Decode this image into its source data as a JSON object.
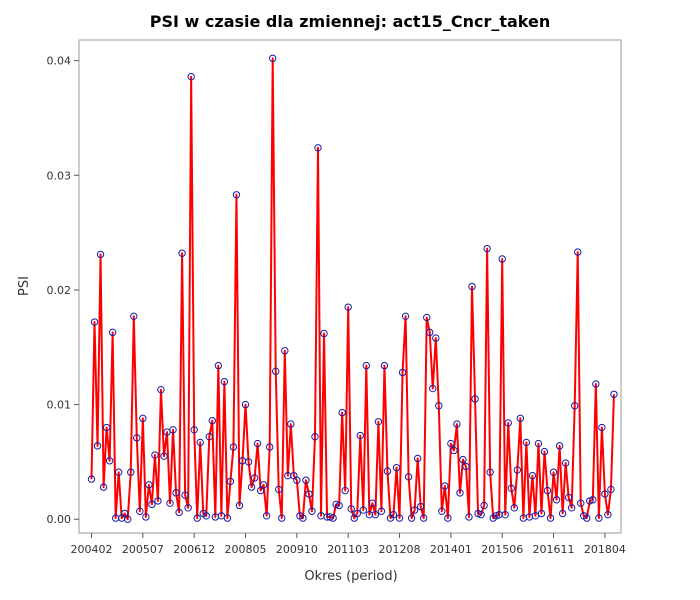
{
  "chart_data": {
    "type": "line",
    "title": "PSI w czasie dla zmiennej: act15_Cncr_taken",
    "xlabel": "Okres (period)",
    "ylabel": "PSI",
    "ylim": [
      -0.0012,
      0.0418
    ],
    "yticks": [
      "0.00",
      "0.01",
      "0.02",
      "0.03",
      "0.04"
    ],
    "ytick_values": [
      0,
      0.01,
      0.02,
      0.03,
      0.04
    ],
    "xticks": [
      "200402",
      "200507",
      "200612",
      "200805",
      "200910",
      "201103",
      "201208",
      "201401",
      "201506",
      "201611",
      "201804"
    ],
    "grid": false,
    "line_color": "#ff0000",
    "marker_color": "#1a1aa6",
    "start_period": "200402",
    "series": [
      {
        "values": [
          0.0035,
          0.0172,
          0.0064,
          0.0231,
          0.0028,
          0.008,
          0.0051,
          0.0163,
          0.0001,
          0.0041,
          0.0001,
          0.0005,
          0.0,
          0.0041,
          0.0177,
          0.0071,
          0.0007,
          0.0088,
          0.0002,
          0.003,
          0.0013,
          0.0056,
          0.0016,
          0.0113,
          0.0055,
          0.0076,
          0.0014,
          0.0078,
          0.0023,
          0.0006,
          0.0232,
          0.0021,
          0.001,
          0.0386,
          0.0078,
          0.0001,
          0.0067,
          0.0005,
          0.0003,
          0.0072,
          0.0086,
          0.0002,
          0.0134,
          0.0003,
          0.012,
          0.0001,
          0.0033,
          0.0063,
          0.0283,
          0.0012,
          0.0051,
          0.01,
          0.005,
          0.0028,
          0.0036,
          0.0066,
          0.0025,
          0.003,
          0.0003,
          0.0063,
          0.0402,
          0.0129,
          0.0026,
          0.0001,
          0.0147,
          0.0038,
          0.0083,
          0.0038,
          0.0034,
          0.0003,
          0.0001,
          0.0034,
          0.0022,
          0.0007,
          0.0072,
          0.0324,
          0.0003,
          0.0162,
          0.0002,
          0.0002,
          0.0001,
          0.0013,
          0.0012,
          0.0093,
          0.0025,
          0.0185,
          0.0009,
          0.0001,
          0.0005,
          0.0073,
          0.0008,
          0.0134,
          0.0004,
          0.0014,
          0.0004,
          0.0085,
          0.0007,
          0.0134,
          0.0042,
          0.0001,
          0.0004,
          0.0045,
          0.0001,
          0.0128,
          0.0177,
          0.0037,
          0.0001,
          0.0008,
          0.0053,
          0.0011,
          0.0001,
          0.0176,
          0.0163,
          0.0114,
          0.0158,
          0.0099,
          0.0007,
          0.0029,
          0.0001,
          0.0066,
          0.006,
          0.0083,
          0.0023,
          0.0052,
          0.0046,
          0.0002,
          0.0203,
          0.0105,
          0.0005,
          0.0004,
          0.0012,
          0.0236,
          0.0041,
          0.0001,
          0.0003,
          0.0004,
          0.0227,
          0.0004,
          0.0084,
          0.0027,
          0.001,
          0.0043,
          0.0088,
          0.0001,
          0.0067,
          0.0002,
          0.0038,
          0.0003,
          0.0066,
          0.0005,
          0.0059,
          0.0025,
          0.0001,
          0.0041,
          0.0017,
          0.0064,
          0.0005,
          0.0049,
          0.0019,
          0.001,
          0.0099,
          0.0233,
          0.0014,
          0.0003,
          0.0001,
          0.0016,
          0.0017,
          0.0118,
          0.0001,
          0.008,
          0.0022,
          0.0004,
          0.0026,
          0.0109
        ]
      }
    ]
  }
}
